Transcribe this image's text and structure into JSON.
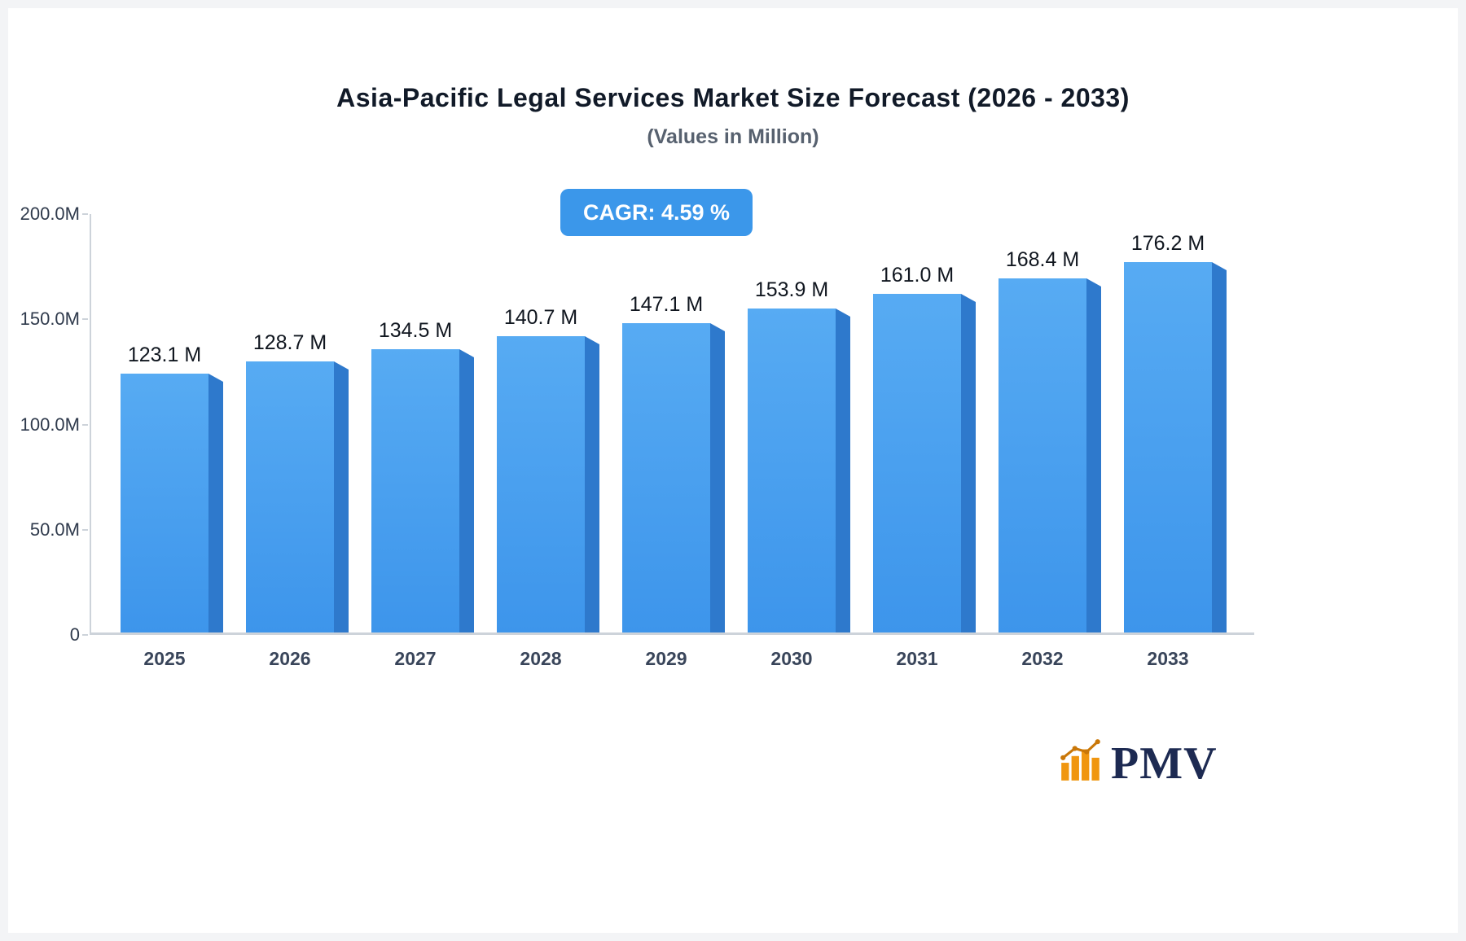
{
  "page": {
    "title": "Asia-Pacific Legal Services Market Size Forecast (2026 - 2033)",
    "subtitle": "(Values in Million)",
    "cagr_label": "CAGR: 4.59 %",
    "brand": "PMV",
    "colors": {
      "bar_front_top": "#57abf3",
      "bar_front_bottom": "#3d95eb",
      "bar_side": "#2e79cc",
      "badge_blue": "#3b97ea",
      "title_color": "#111a28",
      "subtitle_color": "#57616f",
      "axis": "#cdd3da",
      "brand_navy": "#1d2a52",
      "brand_orange": "#f0960f"
    }
  },
  "chart_data": {
    "type": "bar",
    "title": "Asia-Pacific Legal Services Market Size Forecast (2026 - 2033)",
    "subtitle": "(Values in Million)",
    "annotation": "CAGR: 4.59 %",
    "categories": [
      "2025",
      "2026",
      "2027",
      "2028",
      "2029",
      "2030",
      "2031",
      "2032",
      "2033"
    ],
    "values": [
      123.1,
      128.7,
      134.5,
      140.7,
      147.1,
      153.9,
      161.0,
      168.4,
      176.2
    ],
    "value_labels": [
      "123.1 M",
      "128.7 M",
      "134.5 M",
      "140.7 M",
      "147.1 M",
      "153.9 M",
      "161.0 M",
      "168.4 M",
      "176.2 M"
    ],
    "xlabel": "",
    "ylabel": "",
    "ylim": [
      0,
      200
    ],
    "yticks": [
      {
        "value": 0,
        "label": "0"
      },
      {
        "value": 50,
        "label": "50.0M"
      },
      {
        "value": 100,
        "label": "100.0M"
      },
      {
        "value": 150,
        "label": "150.0M"
      },
      {
        "value": 200,
        "label": "200.0M"
      }
    ],
    "grid": false,
    "legend": "none"
  }
}
